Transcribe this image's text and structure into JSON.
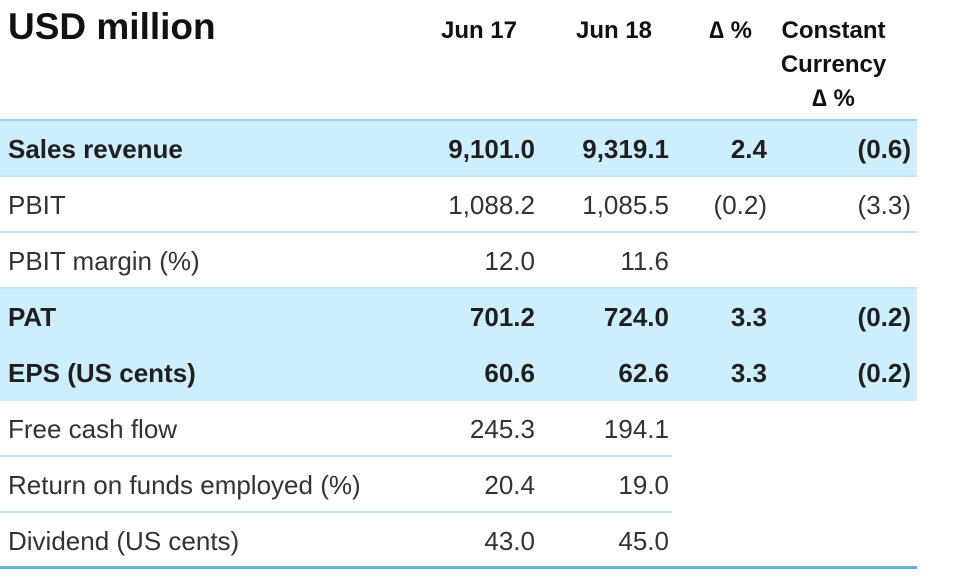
{
  "title": "USD million",
  "headers": {
    "col1": "Jun 17",
    "col2": "Jun 18",
    "col3": "∆ %",
    "col4_line1": "Constant",
    "col4_line2": "Currency",
    "col4_line3": "∆ %"
  },
  "rows": [
    {
      "label": "Sales revenue",
      "jun17": "9,101.0",
      "jun18": "9,319.1",
      "change": "2.4",
      "constant": "(0.6)",
      "highlight": true,
      "bold": true
    },
    {
      "label": "PBIT",
      "jun17": "1,088.2",
      "jun18": "1,085.5",
      "change": "(0.2)",
      "constant": "(3.3)",
      "highlight": false,
      "bold": false
    },
    {
      "label": "PBIT margin (%)",
      "jun17": "12.0",
      "jun18": "11.6",
      "change": "",
      "constant": "",
      "highlight": false,
      "bold": false
    },
    {
      "label": "PAT",
      "jun17": "701.2",
      "jun18": "724.0",
      "change": "3.3",
      "constant": "(0.2)",
      "highlight": true,
      "bold": true
    },
    {
      "label": "EPS (US cents)",
      "jun17": "60.6",
      "jun18": "62.6",
      "change": "3.3",
      "constant": "(0.2)",
      "highlight": true,
      "bold": true
    },
    {
      "label": "Free cash flow",
      "jun17": "245.3",
      "jun18": "194.1",
      "change": "",
      "constant": "",
      "highlight": false,
      "bold": false
    },
    {
      "label": "Return on funds employed (%)",
      "jun17": "20.4",
      "jun18": "19.0",
      "change": "",
      "constant": "",
      "highlight": false,
      "bold": false
    },
    {
      "label": "Dividend (US cents)",
      "jun17": "43.0",
      "jun18": "45.0",
      "change": "",
      "constant": "",
      "highlight": false,
      "bold": false
    }
  ],
  "colors": {
    "highlight_bg": "#cdeefc",
    "separator": "#c4e6f5",
    "rule": "#62b6de"
  }
}
